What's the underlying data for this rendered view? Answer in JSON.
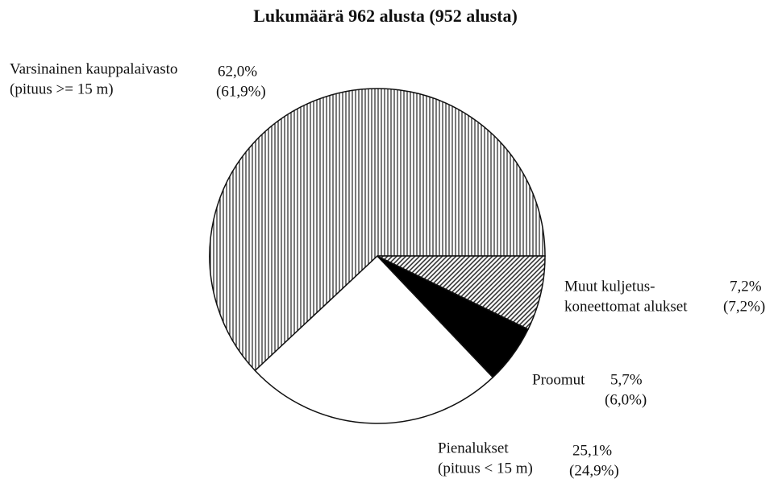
{
  "chart_data": {
    "type": "pie",
    "title": "Lukumäärä 962 alusta (952 alusta)",
    "categories": [
      [
        "Varsinainen kauppalaivasto",
        "(pituus >= 15 m)"
      ],
      [
        "Pienalukset",
        "(pituus < 15 m)"
      ],
      [
        "Proomut"
      ],
      [
        "Muut kuljetus-",
        "koneettomat alukset"
      ]
    ],
    "values": [
      62.0,
      25.1,
      5.7,
      7.2
    ],
    "value_labels": [
      "62,0%",
      "25,1%",
      "5,7%",
      "7,2%"
    ],
    "comparison_values": [
      61.9,
      24.9,
      6.0,
      7.2
    ],
    "comparison_value_labels": [
      "(61,9%)",
      "(24,9%)",
      "(6,0%)",
      "(7,2%)"
    ],
    "fills": [
      "vertical-hatch",
      "white",
      "black",
      "diagonal-hatch"
    ]
  }
}
